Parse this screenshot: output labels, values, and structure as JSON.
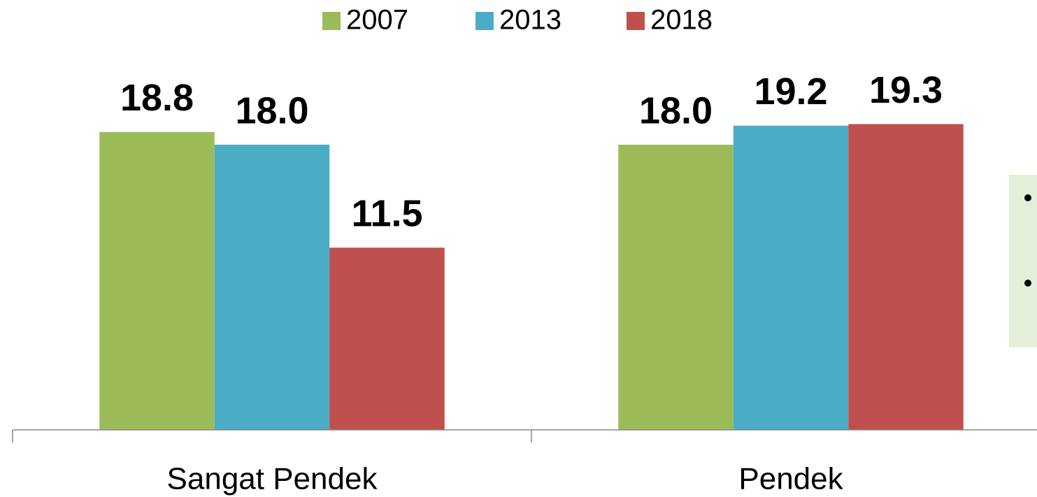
{
  "chart_data": {
    "type": "bar",
    "categories": [
      "Sangat Pendek",
      "Pendek"
    ],
    "series": [
      {
        "name": "2007",
        "color": "#9bbb59",
        "values": [
          18.8,
          18.0
        ],
        "value_labels": [
          "18.8",
          "18.0"
        ]
      },
      {
        "name": "2013",
        "color": "#4bacc6",
        "values": [
          18.0,
          19.2
        ],
        "value_labels": [
          "18.0",
          "19.2"
        ]
      },
      {
        "name": "2018",
        "color": "#c0504d",
        "values": [
          11.5,
          19.3
        ],
        "value_labels": [
          "11.5",
          "19.3"
        ]
      }
    ],
    "ylim": [
      0,
      27
    ],
    "legend": "top"
  }
}
